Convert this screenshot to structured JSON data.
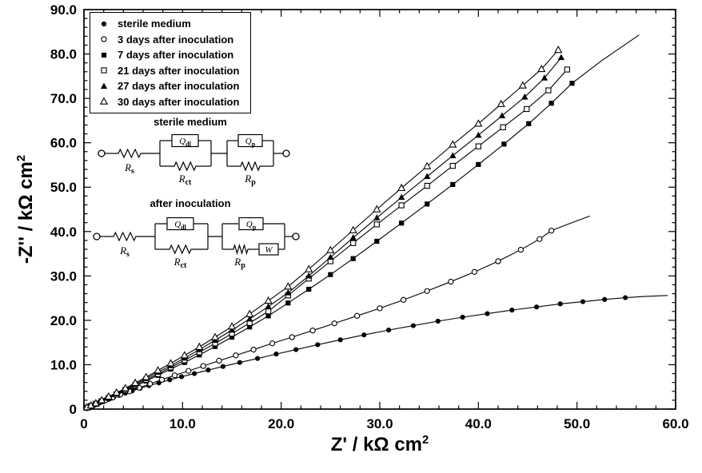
{
  "figure": {
    "background": "#ffffff",
    "foreground": "#000000"
  },
  "axis_labels": {
    "y_main": "-Z'' / kΩ cm",
    "y_sup": "2",
    "x_main": "Z' / kΩ cm",
    "x_sup": "2"
  },
  "chart_data": {
    "type": "scatter",
    "title": "",
    "xlabel": "Z' / kΩ cm²",
    "ylabel": "-Z'' / kΩ cm²",
    "xlim": [
      0,
      60
    ],
    "ylim": [
      0,
      90
    ],
    "grid": false,
    "legend_position": "top-left",
    "x_ticks": {
      "major": [
        0,
        10,
        20,
        30,
        40,
        50,
        60
      ],
      "labels": [
        "0",
        "10.0",
        "20.0",
        "30.0",
        "40.0",
        "50.0",
        "60.0"
      ],
      "minor_step": 2
    },
    "y_ticks": {
      "major": [
        0,
        10,
        20,
        30,
        40,
        50,
        60,
        70,
        80,
        90
      ],
      "labels": [
        "0",
        "10.0",
        "20.0",
        "30.0",
        "40.0",
        "50.0",
        "60.0",
        "70.0",
        "80.0",
        "90.0"
      ],
      "minor_step": 2
    },
    "series": [
      {
        "name": "sterile medium",
        "marker": "circle-filled",
        "points": [
          [
            0.3,
            0.2
          ],
          [
            0.6,
            0.4
          ],
          [
            0.9,
            0.7
          ],
          [
            1.2,
            1.0
          ],
          [
            1.6,
            1.4
          ],
          [
            2.0,
            1.8
          ],
          [
            2.5,
            2.2
          ],
          [
            3.0,
            2.6
          ],
          [
            3.6,
            3.1
          ],
          [
            4.2,
            3.6
          ],
          [
            4.9,
            4.1
          ],
          [
            5.7,
            4.7
          ],
          [
            6.6,
            5.3
          ],
          [
            7.6,
            5.9
          ],
          [
            8.7,
            6.6
          ],
          [
            9.9,
            7.3
          ],
          [
            11.2,
            8.0
          ],
          [
            12.6,
            8.8
          ],
          [
            14.1,
            9.6
          ],
          [
            15.8,
            10.5
          ],
          [
            17.6,
            11.4
          ],
          [
            19.5,
            12.4
          ],
          [
            21.5,
            13.4
          ],
          [
            23.7,
            14.5
          ],
          [
            26.0,
            15.6
          ],
          [
            28.4,
            16.7
          ],
          [
            30.9,
            17.8
          ],
          [
            33.4,
            18.8
          ],
          [
            35.9,
            19.8
          ],
          [
            38.4,
            20.7
          ],
          [
            40.9,
            21.5
          ],
          [
            43.4,
            22.3
          ],
          [
            45.9,
            23.0
          ],
          [
            48.3,
            23.7
          ],
          [
            50.6,
            24.2
          ],
          [
            52.8,
            24.7
          ],
          [
            54.9,
            25.1
          ]
        ],
        "line_extension": [
          [
            57.0,
            25.4
          ],
          [
            59.2,
            25.6
          ]
        ]
      },
      {
        "name": "3 days after inoculation",
        "marker": "circle-open",
        "points": [
          [
            0.3,
            0.2
          ],
          [
            0.7,
            0.6
          ],
          [
            1.1,
            1.0
          ],
          [
            1.6,
            1.5
          ],
          [
            2.2,
            2.0
          ],
          [
            2.9,
            2.6
          ],
          [
            3.7,
            3.3
          ],
          [
            4.6,
            4.0
          ],
          [
            5.6,
            4.8
          ],
          [
            6.7,
            5.7
          ],
          [
            7.9,
            6.6
          ],
          [
            9.2,
            7.6
          ],
          [
            10.6,
            8.6
          ],
          [
            12.1,
            9.7
          ],
          [
            13.7,
            10.9
          ],
          [
            15.4,
            12.1
          ],
          [
            17.2,
            13.4
          ],
          [
            19.1,
            14.8
          ],
          [
            21.1,
            16.2
          ],
          [
            23.2,
            17.7
          ],
          [
            25.4,
            19.3
          ],
          [
            27.7,
            21.0
          ],
          [
            30.0,
            22.7
          ],
          [
            32.4,
            24.6
          ],
          [
            34.8,
            26.6
          ],
          [
            37.2,
            28.7
          ],
          [
            39.6,
            30.9
          ],
          [
            42.0,
            33.3
          ],
          [
            44.3,
            35.9
          ],
          [
            46.2,
            38.3
          ],
          [
            47.4,
            40.2
          ]
        ],
        "line_extension": [
          [
            49.5,
            42.0
          ],
          [
            51.3,
            43.5
          ]
        ]
      },
      {
        "name": "7 days after inoculation",
        "marker": "square-filled",
        "points": [
          [
            0.3,
            0.3
          ],
          [
            0.7,
            0.6
          ],
          [
            1.2,
            1.1
          ],
          [
            1.8,
            1.7
          ],
          [
            2.5,
            2.4
          ],
          [
            3.3,
            3.2
          ],
          [
            4.2,
            4.1
          ],
          [
            5.2,
            5.1
          ],
          [
            6.3,
            6.3
          ],
          [
            7.5,
            7.6
          ],
          [
            8.8,
            9.0
          ],
          [
            10.2,
            10.5
          ],
          [
            11.7,
            12.2
          ],
          [
            13.3,
            14.1
          ],
          [
            15.0,
            16.2
          ],
          [
            16.8,
            18.5
          ],
          [
            18.7,
            21.0
          ],
          [
            20.7,
            23.9
          ],
          [
            22.8,
            27.0
          ],
          [
            25.0,
            30.3
          ],
          [
            27.3,
            33.9
          ],
          [
            29.7,
            37.8
          ],
          [
            32.2,
            41.9
          ],
          [
            34.8,
            46.2
          ],
          [
            37.4,
            50.6
          ],
          [
            40.0,
            55.1
          ],
          [
            42.6,
            59.7
          ],
          [
            45.1,
            64.3
          ],
          [
            47.4,
            68.9
          ],
          [
            49.5,
            73.4
          ]
        ],
        "line_extension": [
          [
            52.5,
            78.5
          ],
          [
            56.3,
            84.3
          ]
        ]
      },
      {
        "name": "21 days after inoculation",
        "marker": "square-open",
        "points": [
          [
            0.3,
            0.3
          ],
          [
            0.7,
            0.7
          ],
          [
            1.2,
            1.2
          ],
          [
            1.8,
            1.8
          ],
          [
            2.5,
            2.5
          ],
          [
            3.3,
            3.3
          ],
          [
            4.2,
            4.3
          ],
          [
            5.2,
            5.4
          ],
          [
            6.3,
            6.6
          ],
          [
            7.5,
            7.9
          ],
          [
            8.8,
            9.4
          ],
          [
            10.2,
            11.0
          ],
          [
            11.7,
            12.8
          ],
          [
            13.3,
            14.8
          ],
          [
            15.0,
            17.0
          ],
          [
            16.8,
            19.4
          ],
          [
            18.7,
            22.0
          ],
          [
            20.7,
            25.6
          ],
          [
            22.8,
            29.4
          ],
          [
            25.0,
            33.3
          ],
          [
            27.3,
            37.4
          ],
          [
            29.7,
            41.6
          ],
          [
            32.2,
            45.9
          ],
          [
            34.8,
            50.3
          ],
          [
            37.4,
            54.8
          ],
          [
            40.0,
            59.2
          ],
          [
            42.5,
            63.5
          ],
          [
            44.9,
            67.6
          ],
          [
            47.1,
            71.8
          ],
          [
            49.0,
            76.5
          ]
        ],
        "line_extension": []
      },
      {
        "name": "27 days after inoculation",
        "marker": "triangle-filled",
        "points": [
          [
            0.3,
            0.3
          ],
          [
            0.7,
            0.7
          ],
          [
            1.2,
            1.2
          ],
          [
            1.8,
            1.9
          ],
          [
            2.5,
            2.6
          ],
          [
            3.3,
            3.5
          ],
          [
            4.2,
            4.5
          ],
          [
            5.2,
            5.6
          ],
          [
            6.3,
            6.9
          ],
          [
            7.5,
            8.3
          ],
          [
            8.8,
            9.8
          ],
          [
            10.2,
            11.5
          ],
          [
            11.7,
            13.4
          ],
          [
            13.3,
            15.5
          ],
          [
            15.0,
            17.8
          ],
          [
            16.8,
            20.3
          ],
          [
            18.7,
            23.1
          ],
          [
            20.7,
            26.2
          ],
          [
            22.8,
            30.0
          ],
          [
            25.0,
            34.2
          ],
          [
            27.3,
            38.6
          ],
          [
            29.7,
            43.1
          ],
          [
            32.2,
            47.7
          ],
          [
            34.8,
            52.4
          ],
          [
            37.4,
            57.1
          ],
          [
            40.0,
            61.7
          ],
          [
            42.4,
            66.1
          ],
          [
            44.7,
            70.3
          ],
          [
            46.7,
            74.6
          ],
          [
            48.4,
            79.2
          ]
        ],
        "line_extension": []
      },
      {
        "name": "30 days after inoculation",
        "marker": "triangle-open",
        "points": [
          [
            0.3,
            0.4
          ],
          [
            0.7,
            0.8
          ],
          [
            1.2,
            1.3
          ],
          [
            1.8,
            2.0
          ],
          [
            2.5,
            2.8
          ],
          [
            3.3,
            3.7
          ],
          [
            4.2,
            4.7
          ],
          [
            5.2,
            5.9
          ],
          [
            6.3,
            7.2
          ],
          [
            7.5,
            8.7
          ],
          [
            8.8,
            10.3
          ],
          [
            10.2,
            12.1
          ],
          [
            11.7,
            14.0
          ],
          [
            13.3,
            16.2
          ],
          [
            15.0,
            18.6
          ],
          [
            16.8,
            21.4
          ],
          [
            18.7,
            24.4
          ],
          [
            20.7,
            27.6
          ],
          [
            22.8,
            31.5
          ],
          [
            25.0,
            35.8
          ],
          [
            27.3,
            40.3
          ],
          [
            29.7,
            45.0
          ],
          [
            32.2,
            49.8
          ],
          [
            34.8,
            54.7
          ],
          [
            37.4,
            59.6
          ],
          [
            40.0,
            64.3
          ],
          [
            42.3,
            68.7
          ],
          [
            44.5,
            72.9
          ],
          [
            46.4,
            76.6
          ],
          [
            48.1,
            80.9
          ]
        ],
        "line_extension": []
      }
    ]
  },
  "circuits": {
    "sterile": {
      "title": "sterile medium",
      "rs": [
        "R",
        "s"
      ],
      "qdl": [
        "Q",
        "dl"
      ],
      "rct": [
        "R",
        "ct"
      ],
      "qp": [
        "Q",
        "p"
      ],
      "rp": [
        "R",
        "p"
      ]
    },
    "inoculated": {
      "title": "after inoculation",
      "rs": [
        "R",
        "s"
      ],
      "qdl": [
        "Q",
        "dl"
      ],
      "rct": [
        "R",
        "ct"
      ],
      "qp": [
        "Q",
        "p"
      ],
      "rp": [
        "R",
        "p"
      ],
      "w": "W"
    }
  }
}
